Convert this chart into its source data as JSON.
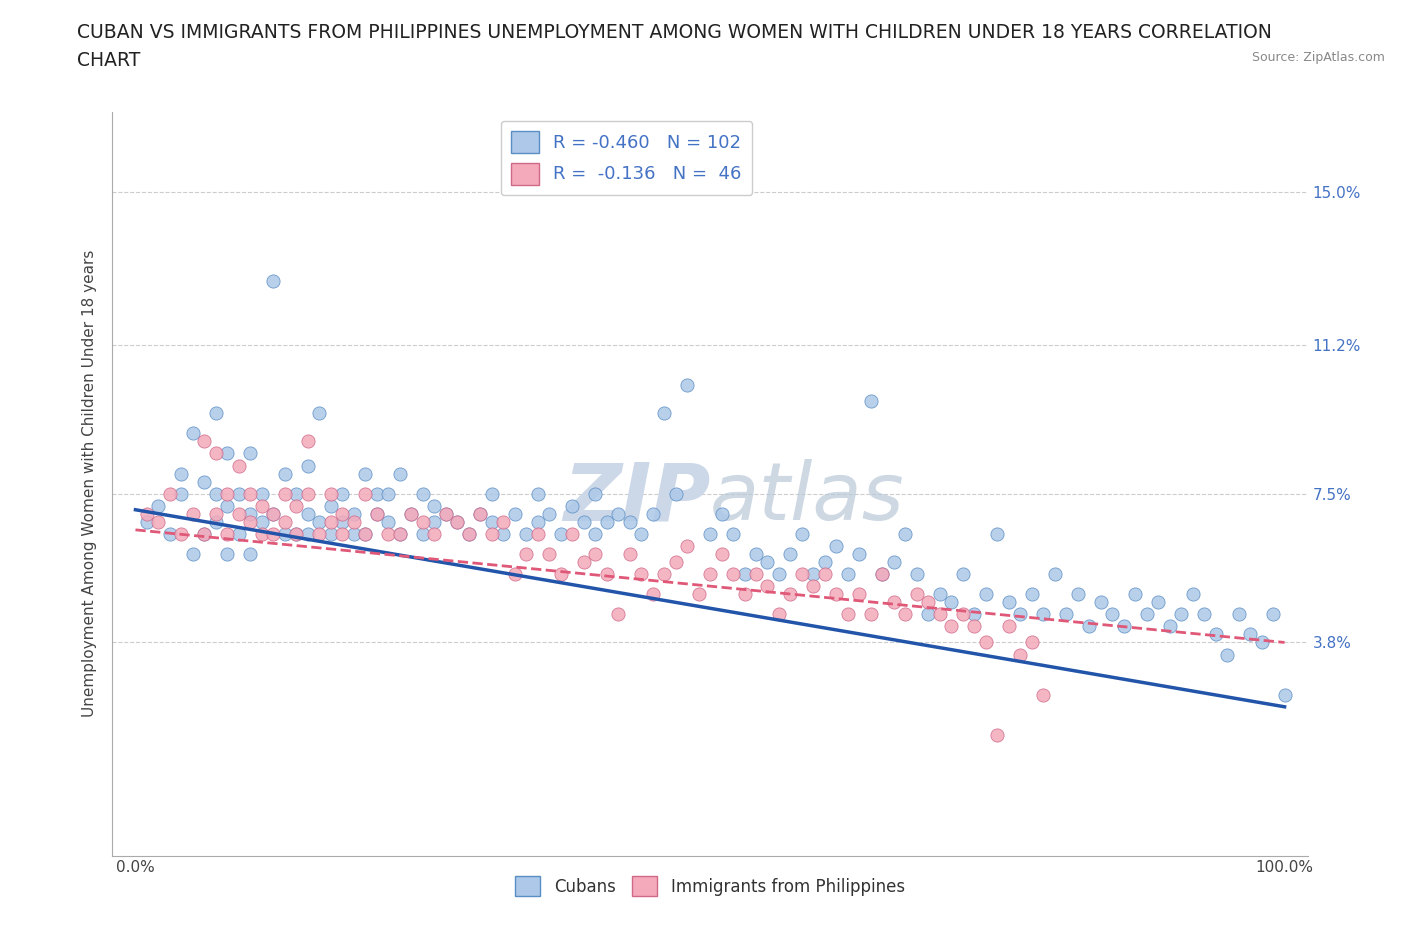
{
  "title_line1": "CUBAN VS IMMIGRANTS FROM PHILIPPINES UNEMPLOYMENT AMONG WOMEN WITH CHILDREN UNDER 18 YEARS CORRELATION",
  "title_line2": "CHART",
  "source_text": "Source: ZipAtlas.com",
  "ylabel": "Unemployment Among Women with Children Under 18 years",
  "xlim": [
    -2,
    102
  ],
  "ylim": [
    -1.5,
    17.0
  ],
  "yticks": [
    3.8,
    7.5,
    11.2,
    15.0
  ],
  "ytick_labels_right": [
    "3.8%",
    "7.5%",
    "11.2%",
    "15.0%"
  ],
  "cubans_color": "#adc8e8",
  "cubans_edge_color": "#5b8ec4",
  "philippines_color": "#f4aaba",
  "philippines_edge_color": "#d06888",
  "cubans_line_color": "#2255aa",
  "philippines_line_color": "#e05878",
  "background_color": "#ffffff",
  "grid_color": "#cccccc",
  "watermark_color": "#ccd8e8",
  "title_fontsize": 13.5,
  "tick_fontsize": 11,
  "ylabel_fontsize": 11,
  "cubans_trend_start_y": 7.1,
  "cubans_trend_end_y": 2.2,
  "philippines_trend_start_y": 6.6,
  "philippines_trend_end_y": 3.8,
  "cubans_x": [
    1,
    2,
    3,
    4,
    4,
    5,
    5,
    6,
    6,
    7,
    7,
    7,
    8,
    8,
    8,
    9,
    9,
    10,
    10,
    10,
    11,
    11,
    12,
    12,
    13,
    13,
    14,
    14,
    15,
    15,
    15,
    16,
    16,
    17,
    17,
    18,
    18,
    19,
    19,
    20,
    20,
    21,
    21,
    22,
    22,
    23,
    23,
    24,
    25,
    25,
    26,
    26,
    27,
    28,
    29,
    30,
    31,
    31,
    32,
    33,
    34,
    35,
    35,
    36,
    37,
    38,
    39,
    40,
    40,
    41,
    42,
    43,
    44,
    45,
    46,
    47,
    48,
    50,
    51,
    52,
    53,
    54,
    55,
    56,
    57,
    58,
    59,
    60,
    61,
    62,
    63,
    64,
    65,
    66,
    67,
    68,
    69,
    70,
    71,
    72,
    73,
    74,
    75,
    76,
    77,
    78,
    79,
    80,
    81,
    82,
    83,
    84,
    85,
    86,
    87,
    88,
    89,
    90,
    91,
    92,
    93,
    94,
    95,
    96,
    97,
    98,
    99,
    100
  ],
  "cubans_y": [
    6.8,
    7.2,
    6.5,
    8.0,
    7.5,
    9.0,
    6.0,
    7.8,
    6.5,
    7.5,
    6.8,
    9.5,
    7.2,
    6.0,
    8.5,
    6.5,
    7.5,
    7.0,
    6.0,
    8.5,
    6.8,
    7.5,
    12.8,
    7.0,
    6.5,
    8.0,
    7.5,
    6.5,
    7.0,
    6.5,
    8.2,
    6.8,
    9.5,
    6.5,
    7.2,
    7.5,
    6.8,
    6.5,
    7.0,
    8.0,
    6.5,
    7.5,
    7.0,
    6.8,
    7.5,
    8.0,
    6.5,
    7.0,
    7.5,
    6.5,
    7.2,
    6.8,
    7.0,
    6.8,
    6.5,
    7.0,
    6.8,
    7.5,
    6.5,
    7.0,
    6.5,
    7.5,
    6.8,
    7.0,
    6.5,
    7.2,
    6.8,
    7.5,
    6.5,
    6.8,
    7.0,
    6.8,
    6.5,
    7.0,
    9.5,
    7.5,
    10.2,
    6.5,
    7.0,
    6.5,
    5.5,
    6.0,
    5.8,
    5.5,
    6.0,
    6.5,
    5.5,
    5.8,
    6.2,
    5.5,
    6.0,
    9.8,
    5.5,
    5.8,
    6.5,
    5.5,
    4.5,
    5.0,
    4.8,
    5.5,
    4.5,
    5.0,
    6.5,
    4.8,
    4.5,
    5.0,
    4.5,
    5.5,
    4.5,
    5.0,
    4.2,
    4.8,
    4.5,
    4.2,
    5.0,
    4.5,
    4.8,
    4.2,
    4.5,
    5.0,
    4.5,
    4.0,
    3.5,
    4.5,
    4.0,
    3.8,
    4.5,
    2.5
  ],
  "philippines_x": [
    1,
    2,
    3,
    4,
    5,
    6,
    6,
    7,
    7,
    8,
    8,
    9,
    9,
    10,
    10,
    11,
    11,
    12,
    12,
    13,
    13,
    14,
    14,
    15,
    15,
    16,
    17,
    17,
    18,
    18,
    19,
    20,
    20,
    21,
    22,
    23,
    24,
    25,
    26,
    27,
    28,
    29,
    30,
    31,
    32,
    33,
    34,
    35,
    36,
    37,
    38,
    39,
    40,
    41,
    42,
    43,
    44,
    45,
    46,
    47,
    48,
    49,
    50,
    51,
    52,
    53,
    54,
    55,
    56,
    57,
    58,
    59,
    60,
    61,
    62,
    63,
    64,
    65,
    66,
    67,
    68,
    69,
    70,
    71,
    72,
    73,
    74,
    75,
    76,
    77,
    78,
    79
  ],
  "philippines_y": [
    7.0,
    6.8,
    7.5,
    6.5,
    7.0,
    8.8,
    6.5,
    8.5,
    7.0,
    7.5,
    6.5,
    8.2,
    7.0,
    7.5,
    6.8,
    7.2,
    6.5,
    7.0,
    6.5,
    7.5,
    6.8,
    7.2,
    6.5,
    7.5,
    8.8,
    6.5,
    7.5,
    6.8,
    7.0,
    6.5,
    6.8,
    7.5,
    6.5,
    7.0,
    6.5,
    6.5,
    7.0,
    6.8,
    6.5,
    7.0,
    6.8,
    6.5,
    7.0,
    6.5,
    6.8,
    5.5,
    6.0,
    6.5,
    6.0,
    5.5,
    6.5,
    5.8,
    6.0,
    5.5,
    4.5,
    6.0,
    5.5,
    5.0,
    5.5,
    5.8,
    6.2,
    5.0,
    5.5,
    6.0,
    5.5,
    5.0,
    5.5,
    5.2,
    4.5,
    5.0,
    5.5,
    5.2,
    5.5,
    5.0,
    4.5,
    5.0,
    4.5,
    5.5,
    4.8,
    4.5,
    5.0,
    4.8,
    4.5,
    4.2,
    4.5,
    4.2,
    3.8,
    1.5,
    4.2,
    3.5,
    3.8,
    2.5
  ]
}
